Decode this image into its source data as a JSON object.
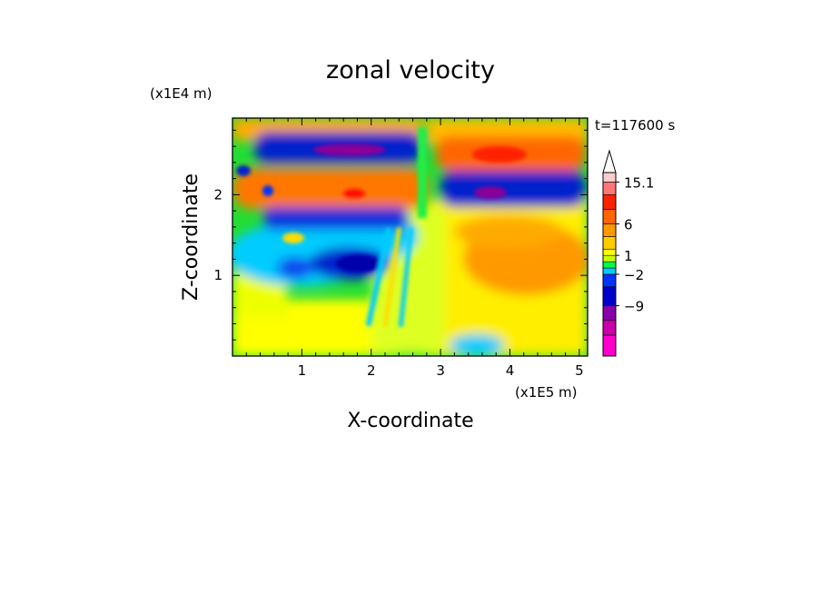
{
  "chart_data": {
    "type": "heatmap",
    "title": "zonal velocity",
    "xlabel": "X-coordinate",
    "ylabel": "Z-coordinate",
    "x_unit": "(x1E5 m)",
    "y_unit": "(x1E4 m)",
    "time_label": "t=117600 s",
    "xlim": [
      0,
      5.12
    ],
    "ylim": [
      0,
      2.95
    ],
    "x_ticks": [
      1,
      2,
      3,
      4,
      5
    ],
    "y_ticks": [
      1,
      2
    ],
    "x_tick_labels": [
      "1",
      "2",
      "3",
      "4",
      "5"
    ],
    "y_tick_labels": [
      "1",
      "2"
    ],
    "colorbar": {
      "levels": [
        -15,
        -12,
        -9,
        -6,
        -2,
        -1,
        0,
        1,
        2,
        4,
        6,
        9,
        12,
        15.1
      ],
      "colors": [
        "#ff00cc",
        "#cc00aa",
        "#8800aa",
        "#0000cc",
        "#0033ff",
        "#00ccff",
        "#00ff44",
        "#ccff00",
        "#ffff00",
        "#ffcc00",
        "#ff9900",
        "#ff6600",
        "#ff2200",
        "#ff7777",
        "#ffcccc"
      ],
      "labels": [
        {
          "value": 15.1,
          "text": "15.1"
        },
        {
          "value": 6,
          "text": "6"
        },
        {
          "value": 1,
          "text": "1"
        },
        {
          "value": -2,
          "text": "−2"
        },
        {
          "value": -9,
          "text": "−9"
        }
      ],
      "extend": "max"
    },
    "field_bands": [
      {
        "x": [
          0.0,
          2.7
        ],
        "z": [
          2.5,
          2.8
        ],
        "value": -9
      },
      {
        "x": [
          0.0,
          2.7
        ],
        "z": [
          1.85,
          2.25
        ],
        "value": 9
      },
      {
        "x": [
          0.5,
          2.4
        ],
        "z": [
          1.55,
          1.75
        ],
        "value": -9
      },
      {
        "x": [
          1.4,
          2.3
        ],
        "z": [
          1.0,
          1.3
        ],
        "value": -9
      },
      {
        "x": [
          3.0,
          5.1
        ],
        "z": [
          2.45,
          2.75
        ],
        "value": 9
      },
      {
        "x": [
          3.0,
          5.1
        ],
        "z": [
          1.85,
          2.2
        ],
        "value": -9
      },
      {
        "x": [
          3.1,
          5.1
        ],
        "z": [
          1.0,
          1.7
        ],
        "value": 6
      }
    ]
  }
}
